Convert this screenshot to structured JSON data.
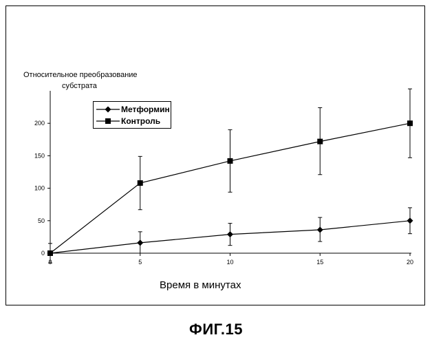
{
  "chart_data": {
    "type": "line",
    "title": "",
    "ylabel_line1": "Относительное преобразование",
    "ylabel_line2": "субстрата",
    "xlabel": "Время в минутах",
    "x": [
      0,
      5,
      10,
      15,
      20
    ],
    "x_ticks": [
      0,
      5,
      10,
      15,
      20
    ],
    "y_ticks": [
      0,
      50,
      100,
      150,
      200
    ],
    "ylim": [
      0,
      250
    ],
    "xlim": [
      0,
      20
    ],
    "grid": false,
    "legend_position": "top-left",
    "series": [
      {
        "name": "Метформин",
        "marker": "diamond",
        "values": [
          0,
          16,
          29,
          36,
          50
        ],
        "error": [
          [
            0,
            0
          ],
          [
            16,
            17
          ],
          [
            17,
            17
          ],
          [
            18,
            19
          ],
          [
            20,
            20
          ]
        ]
      },
      {
        "name": "Контроль",
        "marker": "square",
        "values": [
          0,
          108,
          142,
          172,
          200
        ],
        "error": [
          [
            15,
            15
          ],
          [
            41,
            41
          ],
          [
            48,
            48
          ],
          [
            51,
            52
          ],
          [
            53,
            53
          ]
        ]
      }
    ]
  },
  "figure_label": "ФИГ.15"
}
